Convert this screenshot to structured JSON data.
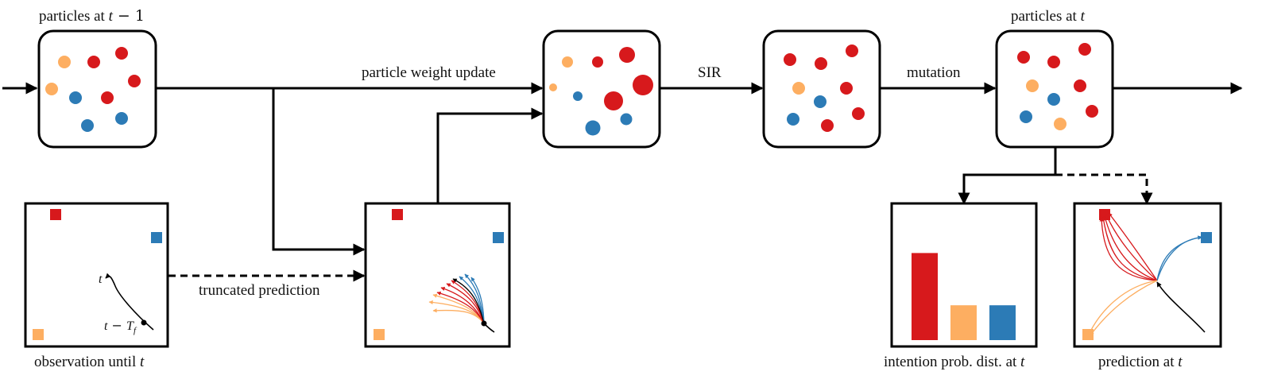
{
  "labels": {
    "particles_prev_prefix": "particles at ",
    "particles_prev_var": "t",
    "particles_prev_suffix": " − 1",
    "particles_curr_prefix": "particles at ",
    "particles_curr_var": "t",
    "weight_update": "particle weight update",
    "sir": "SIR",
    "mutation": "mutation",
    "truncated_prediction": "truncated prediction",
    "observation_prefix": "observation until ",
    "observation_var": "t",
    "intention_prefix": "intention prob. dist. at ",
    "intention_var": "t",
    "prediction_prefix": "prediction at ",
    "prediction_var": "t",
    "traj_t": "t",
    "traj_tf_prefix": "t",
    "traj_tf_mid": " − ",
    "traj_tf_var": "T",
    "traj_tf_sub": "f"
  },
  "colors": {
    "red": "#d7191c",
    "orange": "#fdae61",
    "blue": "#2c7bb6",
    "line": "#000000"
  },
  "chart_data": {
    "type": "bar",
    "categories": [
      "red",
      "orange",
      "blue"
    ],
    "values": [
      0.8,
      0.32,
      0.32
    ],
    "title": "",
    "xlabel": "",
    "ylabel": ""
  }
}
